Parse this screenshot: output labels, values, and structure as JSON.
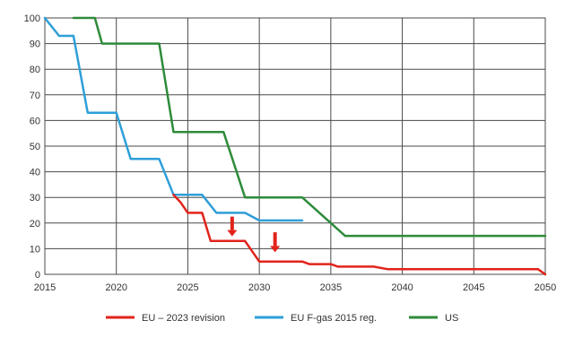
{
  "chart_data": {
    "type": "line",
    "title": "",
    "xlabel": "",
    "ylabel": "",
    "xlim": [
      2015,
      2050
    ],
    "ylim": [
      0,
      100
    ],
    "x_ticks": [
      2015,
      2020,
      2025,
      2030,
      2035,
      2040,
      2045,
      2050
    ],
    "y_ticks": [
      0,
      10,
      20,
      30,
      40,
      50,
      60,
      70,
      80,
      90,
      100
    ],
    "x_tick_labels": [
      "2015",
      "2020",
      "2025",
      "2030",
      "2035",
      "2040",
      "2045",
      "2050"
    ],
    "y_tick_labels": [
      "0",
      "10",
      "20",
      "30",
      "40",
      "50",
      "60",
      "70",
      "80",
      "90",
      "100"
    ],
    "grid": true,
    "legend_position": "bottom",
    "series": [
      {
        "name": "EU – 2023 revision",
        "color": "#e2231a",
        "points": [
          [
            2024,
            31
          ],
          [
            2024.5,
            28
          ],
          [
            2025,
            24
          ],
          [
            2026,
            24
          ],
          [
            2026.6,
            13
          ],
          [
            2029,
            13
          ],
          [
            2030,
            5
          ],
          [
            2033,
            5
          ],
          [
            2033.5,
            4
          ],
          [
            2035,
            4
          ],
          [
            2035.5,
            3
          ],
          [
            2038,
            3
          ],
          [
            2039,
            2
          ],
          [
            2049.5,
            2
          ],
          [
            2050,
            0
          ]
        ]
      },
      {
        "name": "EU F-gas 2015 reg.",
        "color": "#2e9fd8",
        "points": [
          [
            2015,
            100
          ],
          [
            2016,
            93
          ],
          [
            2017,
            93
          ],
          [
            2018,
            63
          ],
          [
            2020,
            63
          ],
          [
            2021,
            45
          ],
          [
            2023,
            45
          ],
          [
            2024,
            31
          ],
          [
            2026,
            31
          ],
          [
            2027,
            24
          ],
          [
            2029,
            24
          ],
          [
            2030,
            21
          ],
          [
            2033,
            21
          ]
        ]
      },
      {
        "name": "US",
        "color": "#2e8b3a",
        "points": [
          [
            2017,
            100
          ],
          [
            2018.5,
            100
          ],
          [
            2019,
            90
          ],
          [
            2023,
            90
          ],
          [
            2024,
            55.5
          ],
          [
            2027.5,
            55.5
          ],
          [
            2029,
            30
          ],
          [
            2033,
            30
          ],
          [
            2035,
            20
          ],
          [
            2036,
            15
          ],
          [
            2050,
            15
          ]
        ]
      }
    ],
    "annotations": [
      {
        "type": "arrow-down",
        "color": "#e2231a",
        "x": 2028.1,
        "y_top": 22.5,
        "y_bottom": 14.8
      },
      {
        "type": "arrow-down",
        "color": "#e2231a",
        "x": 2031.1,
        "y_top": 16.4,
        "y_bottom": 8.6
      }
    ]
  }
}
